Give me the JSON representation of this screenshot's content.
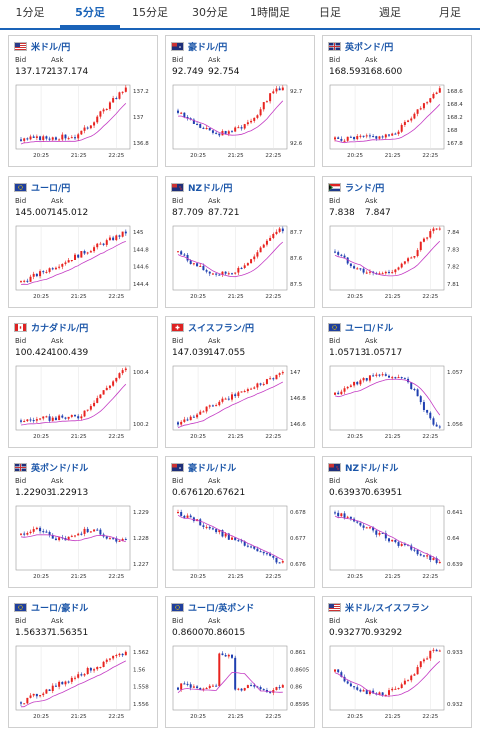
{
  "tabs": [
    "1分足",
    "5分足",
    "15分足",
    "30分足",
    "1時間足",
    "日足",
    "週足",
    "月足"
  ],
  "active_tab": 1,
  "bid_label": "Bid",
  "ask_label": "Ask",
  "x_ticks": [
    "20:25",
    "21:25",
    "22:25"
  ],
  "cards": [
    {
      "title": "米ドル/円",
      "flag": "us",
      "bid": "137.172",
      "ask": "137.174",
      "y_ticks": [
        "137.2",
        "137",
        "136.8"
      ],
      "trend": "up_strong"
    },
    {
      "title": "豪ドル/円",
      "flag": "au",
      "bid": "92.749",
      "ask": "92.754",
      "y_ticks": [
        "92.7",
        "92.6"
      ],
      "trend": "dip_up"
    },
    {
      "title": "英ポンド/円",
      "flag": "gb",
      "bid": "168.593",
      "ask": "168.600",
      "y_ticks": [
        "168.6",
        "168.4",
        "168.2",
        "168",
        "167.8"
      ],
      "trend": "up_strong"
    },
    {
      "title": "ユーロ/円",
      "flag": "eu",
      "bid": "145.007",
      "ask": "145.012",
      "y_ticks": [
        "145",
        "144.8",
        "144.6",
        "144.4"
      ],
      "trend": "up_steady"
    },
    {
      "title": "NZドル/円",
      "flag": "nz",
      "bid": "87.709",
      "ask": "87.721",
      "y_ticks": [
        "87.7",
        "87.6",
        "87.5"
      ],
      "trend": "dip_up"
    },
    {
      "title": "ランド/円",
      "flag": "za",
      "bid": "7.838",
      "ask": "7.847",
      "y_ticks": [
        "7.84",
        "7.83",
        "7.82",
        "7.81"
      ],
      "trend": "dip_up"
    },
    {
      "title": "カナダドル/円",
      "flag": "ca",
      "bid": "100.424",
      "ask": "100.439",
      "y_ticks": [
        "100.4",
        "100.2"
      ],
      "trend": "up_strong"
    },
    {
      "title": "スイスフラン/円",
      "flag": "ch",
      "bid": "147.039",
      "ask": "147.055",
      "y_ticks": [
        "147",
        "146.8",
        "146.6"
      ],
      "trend": "up_steady"
    },
    {
      "title": "ユーロ/ドル",
      "flag": "eu",
      "bid": "1.05713",
      "ask": "1.05717",
      "y_ticks": [
        "1.057",
        "1.056"
      ],
      "trend": "hump_down"
    },
    {
      "title": "英ポンド/ドル",
      "flag": "gb",
      "bid": "1.22903",
      "ask": "1.22913",
      "y_ticks": [
        "1.229",
        "1.228",
        "1.227"
      ],
      "trend": "flat"
    },
    {
      "title": "豪ドル/ドル",
      "flag": "au",
      "bid": "0.67612",
      "ask": "0.67621",
      "y_ticks": [
        "0.678",
        "0.677",
        "0.676"
      ],
      "trend": "down"
    },
    {
      "title": "NZドル/ドル",
      "flag": "nz",
      "bid": "0.63937",
      "ask": "0.63951",
      "y_ticks": [
        "0.641",
        "0.64",
        "0.639"
      ],
      "trend": "down"
    },
    {
      "title": "ユーロ/豪ドル",
      "flag": "eu",
      "bid": "1.56337",
      "ask": "1.56351",
      "y_ticks": [
        "1.562",
        "1.56",
        "1.558",
        "1.556"
      ],
      "trend": "up_steady"
    },
    {
      "title": "ユーロ/英ポンド",
      "flag": "eu",
      "bid": "0.86007",
      "ask": "0.86015",
      "y_ticks": [
        "0.861",
        "0.8605",
        "0.86",
        "0.8595"
      ],
      "trend": "spike"
    },
    {
      "title": "米ドル/スイスフラン",
      "flag": "us",
      "bid": "0.93277",
      "ask": "0.93292",
      "y_ticks": [
        "0.933",
        "0.932"
      ],
      "trend": "dip_up"
    }
  ],
  "colors": {
    "accent": "#1a63b8",
    "up_candle": "#e8231f",
    "down_candle": "#1f3fb0",
    "ma_line": "#c43cc4",
    "ma2_line": "#2aa0a0"
  }
}
